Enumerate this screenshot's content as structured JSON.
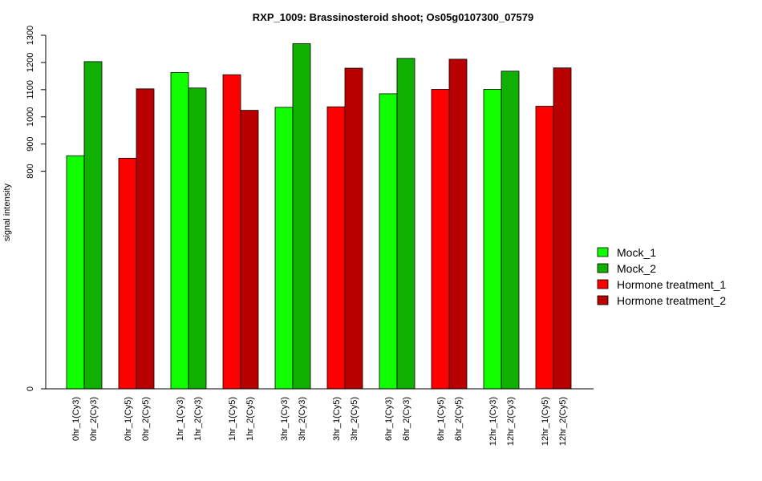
{
  "chart_data": {
    "type": "bar",
    "title": "RXP_1009: Brassinosteroid shoot; Os05g0107300_07579",
    "ylabel": "signal intensity",
    "xlabel": "",
    "ylim": [
      0,
      1300
    ],
    "yticks": [
      0,
      800,
      900,
      1000,
      1100,
      1200,
      1300
    ],
    "grid": false,
    "legend_position": "right",
    "categories": [
      "0hr_1(Cy3)",
      "0hr_2(Cy3)",
      "0hr_1(Cy5)",
      "0hr_2(Cy5)",
      "1hr_1(Cy3)",
      "1hr_2(Cy3)",
      "1hr_1(Cy5)",
      "1hr_2(Cy5)",
      "3hr_1(Cy3)",
      "3hr_2(Cy3)",
      "3hr_1(Cy5)",
      "3hr_2(Cy5)",
      "6hr_1(Cy3)",
      "6hr_2(Cy3)",
      "6hr_1(Cy5)",
      "6hr_2(Cy5)",
      "12hr_1(Cy3)",
      "12hr_2(Cy3)",
      "12hr_1(Cy5)",
      "12hr_2(Cy5)"
    ],
    "values": [
      857,
      1203,
      848,
      1103,
      1163,
      1106,
      1155,
      1024,
      1035,
      1269,
      1037,
      1179,
      1085,
      1215,
      1101,
      1212,
      1101,
      1168,
      1039,
      1180
    ],
    "bar_series": [
      0,
      1,
      2,
      3,
      0,
      1,
      2,
      3,
      0,
      1,
      2,
      3,
      0,
      1,
      2,
      3,
      0,
      1,
      2,
      3
    ],
    "series": [
      {
        "name": "Mock_1",
        "color": "#11ff00"
      },
      {
        "name": "Mock_2",
        "color": "#10b000"
      },
      {
        "name": "Hormone treatment_1",
        "color": "#ff0000"
      },
      {
        "name": "Hormone treatment_2",
        "color": "#b80000"
      }
    ]
  }
}
